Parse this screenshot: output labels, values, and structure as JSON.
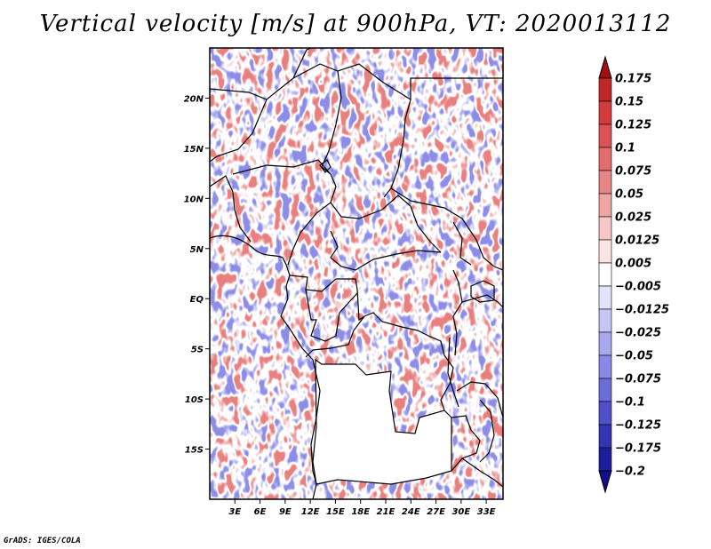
{
  "title": "Vertical velocity [m/s] at 900hPa, VT: 2020013112",
  "credit": "GrADS: IGES/COLA",
  "map": {
    "variable": "Vertical velocity",
    "units": "m/s",
    "level": "900hPa",
    "valid_time": "2020013112",
    "lat_range": [
      -20,
      25
    ],
    "lon_range": [
      0,
      35
    ],
    "lat_ticks": [
      {
        "value": 20,
        "label": "20N"
      },
      {
        "value": 15,
        "label": "15N"
      },
      {
        "value": 10,
        "label": "10N"
      },
      {
        "value": 5,
        "label": "5N"
      },
      {
        "value": 0,
        "label": "EQ"
      },
      {
        "value": -5,
        "label": "5S"
      },
      {
        "value": -10,
        "label": "10S"
      },
      {
        "value": -15,
        "label": "15S"
      }
    ],
    "lon_ticks": [
      {
        "value": 3,
        "label": "3E"
      },
      {
        "value": 6,
        "label": "6E"
      },
      {
        "value": 9,
        "label": "9E"
      },
      {
        "value": 12,
        "label": "12E"
      },
      {
        "value": 15,
        "label": "15E"
      },
      {
        "value": 18,
        "label": "18E"
      },
      {
        "value": 21,
        "label": "21E"
      },
      {
        "value": 24,
        "label": "24E"
      },
      {
        "value": 27,
        "label": "27E"
      },
      {
        "value": 30,
        "label": "30E"
      },
      {
        "value": 33,
        "label": "33E"
      }
    ]
  },
  "colorbar": {
    "labels": [
      "0.175",
      "0.15",
      "0.125",
      "0.1",
      "0.075",
      "0.05",
      "0.025",
      "0.0125",
      "0.005",
      "−0.005",
      "−0.0125",
      "−0.025",
      "−0.05",
      "−0.075",
      "−0.1",
      "−0.125",
      "−0.175",
      "−0.2"
    ],
    "colors": [
      "#a01010",
      "#c02828",
      "#d23c3c",
      "#dd5353",
      "#e36c6c",
      "#e88585",
      "#f0a5a5",
      "#f7c6c6",
      "#fce4e4",
      "#ffffff",
      "#e3e3fb",
      "#c6c6f6",
      "#a8a8ef",
      "#8a8ae6",
      "#6d6dd9",
      "#5050c8",
      "#3535b4",
      "#1e1e9c",
      "#10108a"
    ]
  },
  "colors": {
    "border": "#000000",
    "background": "#ffffff"
  }
}
